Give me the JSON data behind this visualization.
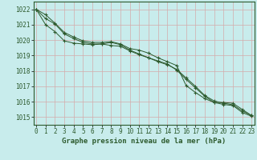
{
  "title": "Graphe pression niveau de la mer (hPa)",
  "bg_color": "#c8ecec",
  "grid_color": "#d4aaaa",
  "line_color": "#2d5a2d",
  "x_values": [
    0,
    1,
    2,
    3,
    4,
    5,
    6,
    7,
    8,
    9,
    10,
    11,
    12,
    13,
    14,
    15,
    16,
    17,
    18,
    19,
    20,
    21,
    22,
    23
  ],
  "line1": [
    1022.0,
    1021.65,
    1021.1,
    1020.5,
    1020.2,
    1019.95,
    1019.85,
    1019.85,
    1019.9,
    1019.75,
    1019.45,
    1019.35,
    1019.15,
    1018.85,
    1018.6,
    1018.35,
    1017.05,
    1016.6,
    1016.2,
    1015.95,
    1015.95,
    1015.9,
    1015.5,
    1015.1
  ],
  "line2": [
    1022.0,
    1021.4,
    1021.05,
    1020.4,
    1020.1,
    1019.85,
    1019.75,
    1019.75,
    1019.85,
    1019.7,
    1019.35,
    1019.1,
    1018.85,
    1018.6,
    1018.4,
    1018.1,
    1017.55,
    1017.0,
    1016.4,
    1016.05,
    1015.9,
    1015.8,
    1015.4,
    1015.1
  ],
  "line3": [
    1022.0,
    1021.0,
    1020.55,
    1019.95,
    1019.8,
    1019.75,
    1019.7,
    1019.75,
    1019.65,
    1019.6,
    1019.3,
    1019.05,
    1018.85,
    1018.65,
    1018.45,
    1018.05,
    1017.45,
    1016.9,
    1016.35,
    1015.95,
    1015.82,
    1015.75,
    1015.3,
    1015.05
  ],
  "ylim": [
    1014.5,
    1022.5
  ],
  "yticks": [
    1015,
    1016,
    1017,
    1018,
    1019,
    1020,
    1021,
    1022
  ],
  "xlim": [
    -0.3,
    23.3
  ],
  "xticks": [
    0,
    1,
    2,
    3,
    4,
    5,
    6,
    7,
    8,
    9,
    10,
    11,
    12,
    13,
    14,
    15,
    16,
    17,
    18,
    19,
    20,
    21,
    22,
    23
  ],
  "ylabel_fontsize": 5.5,
  "xlabel_fontsize": 5.5,
  "title_fontsize": 6.5,
  "marker_size": 2.5,
  "line_width": 0.7
}
